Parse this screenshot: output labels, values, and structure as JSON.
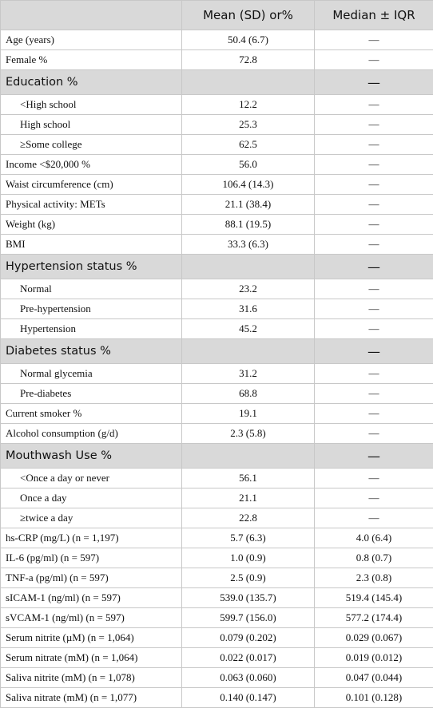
{
  "table": {
    "columns": [
      "Mean (SD) or%",
      "Median ± IQR"
    ],
    "rows": [
      {
        "label": "Age (years)",
        "mean": "50.4 (6.7)",
        "median": "—"
      },
      {
        "label": "Female %",
        "mean": "72.8",
        "median": "—"
      },
      {
        "label": "Education %",
        "median": "—",
        "section": true
      },
      {
        "label": "<High school",
        "mean": "12.2",
        "median": "—",
        "indent": true
      },
      {
        "label": "High school",
        "mean": "25.3",
        "median": "—",
        "indent": true
      },
      {
        "label": "≥Some college",
        "mean": "62.5",
        "median": "—",
        "indent": true
      },
      {
        "label": "Income <$20,000 %",
        "mean": "56.0",
        "median": "—"
      },
      {
        "label": "Waist circumference (cm)",
        "mean": "106.4 (14.3)",
        "median": "—"
      },
      {
        "label": "Physical activity: METs",
        "mean": "21.1 (38.4)",
        "median": "—"
      },
      {
        "label": "Weight (kg)",
        "mean": "88.1 (19.5)",
        "median": "—"
      },
      {
        "label": "BMI",
        "mean": "33.3 (6.3)",
        "median": "—"
      },
      {
        "label": "Hypertension status %",
        "median": "—",
        "section": true
      },
      {
        "label": "Normal",
        "mean": "23.2",
        "median": "—",
        "indent": true
      },
      {
        "label": "Pre-hypertension",
        "mean": "31.6",
        "median": "—",
        "indent": true
      },
      {
        "label": "Hypertension",
        "mean": "45.2",
        "median": "—",
        "indent": true
      },
      {
        "label": "Diabetes status %",
        "median": "—",
        "section": true
      },
      {
        "label": "Normal glycemia",
        "mean": "31.2",
        "median": "—",
        "indent": true
      },
      {
        "label": "Pre-diabetes",
        "mean": "68.8",
        "median": "—",
        "indent": true
      },
      {
        "label": "Current smoker %",
        "mean": "19.1",
        "median": "—"
      },
      {
        "label": "Alcohol consumption (g/d)",
        "mean": "2.3 (5.8)",
        "median": "—"
      },
      {
        "label": "Mouthwash Use %",
        "median": "—",
        "section": true
      },
      {
        "label": "<Once a day or never",
        "mean": "56.1",
        "median": "—",
        "indent": true
      },
      {
        "label": "Once a day",
        "mean": "21.1",
        "median": "—",
        "indent": true
      },
      {
        "label": "≥twice a day",
        "mean": "22.8",
        "median": "—",
        "indent": true
      },
      {
        "label": "hs-CRP (mg/L) (n = 1,197)",
        "mean": "5.7 (6.3)",
        "median": "4.0 (6.4)"
      },
      {
        "label": "IL-6 (pg/ml) (n = 597)",
        "mean": "1.0 (0.9)",
        "median": "0.8 (0.7)"
      },
      {
        "label": "TNF-a (pg/ml) (n = 597)",
        "mean": "2.5 (0.9)",
        "median": "2.3 (0.8)"
      },
      {
        "label": "sICAM-1 (ng/ml) (n = 597)",
        "mean": "539.0 (135.7)",
        "median": "519.4 (145.4)"
      },
      {
        "label": "sVCAM-1 (ng/ml) (n = 597)",
        "mean": "599.7 (156.0)",
        "median": "577.2 (174.4)"
      },
      {
        "label": "Serum nitrite (µM) (n = 1,064)",
        "mean": "0.079 (0.202)",
        "median": "0.029 (0.067)"
      },
      {
        "label": "Serum nitrate (mM) (n = 1,064)",
        "mean": "0.022 (0.017)",
        "median": "0.019 (0.012)"
      },
      {
        "label": "Saliva nitrite (mM) (n = 1,078)",
        "mean": "0.063 (0.060)",
        "median": "0.047 (0.044)"
      },
      {
        "label": "Saliva nitrate (mM) (n = 1,077)",
        "mean": "0.140 (0.147)",
        "median": "0.101 (0.128)"
      }
    ]
  }
}
